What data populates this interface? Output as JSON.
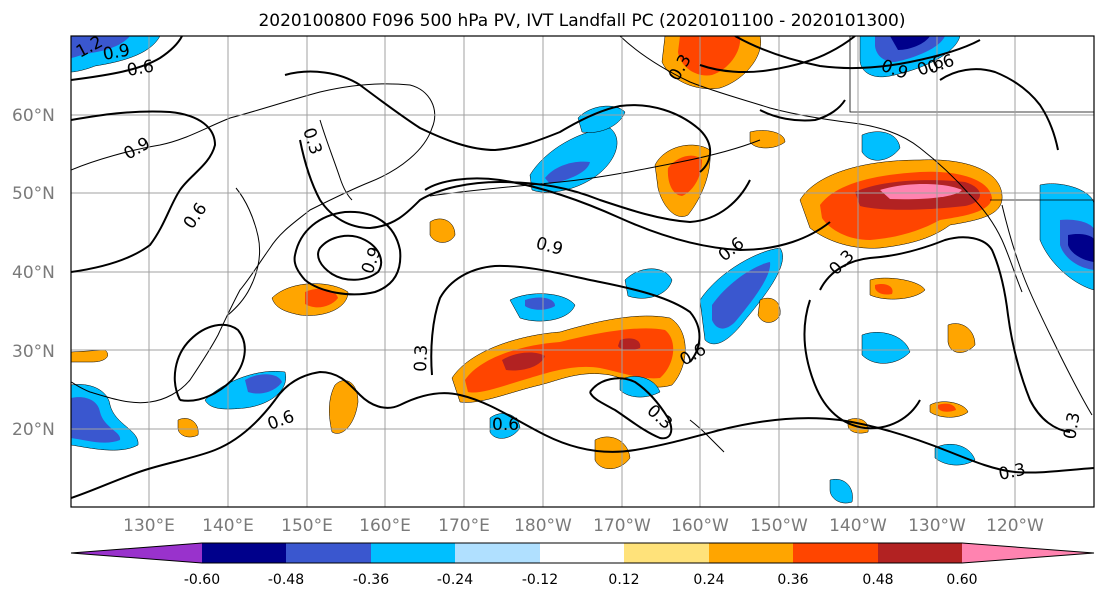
{
  "title": "2020100800 F096 500 hPa PV, IVT Landfall PC (2020101100 - 2020101300)",
  "lat_labels": [
    "60°N",
    "50°N",
    "40°N",
    "30°N",
    "20°N"
  ],
  "lon_labels": [
    "130°E",
    "140°E",
    "150°E",
    "160°E",
    "170°E",
    "180°W",
    "170°W",
    "160°W",
    "150°W",
    "140°W",
    "130°W",
    "120°W"
  ],
  "contour_labels": [
    "1.2",
    "0.9",
    "0.6",
    "0.3",
    "0.9",
    "0.6",
    "0.9",
    "0.9",
    "0.6",
    "0.3",
    "0.6",
    "0.3",
    "0.6",
    "0.6",
    "0.3",
    "0.3",
    "0.6",
    "0.3",
    "0.9",
    "0.6",
    "0.3"
  ],
  "colorbar": {
    "ticks": [
      "-0.60",
      "-0.48",
      "-0.36",
      "-0.24",
      "-0.12",
      "0.12",
      "0.24",
      "0.36",
      "0.48",
      "0.60"
    ],
    "colors": [
      "#9932cc",
      "#00008b",
      "#3a57cf",
      "#00bfff",
      "#b0e0ff",
      "#ffffff",
      "#ffe27a",
      "#ffa500",
      "#ff4500",
      "#b22222",
      "#ff83b0"
    ]
  }
}
